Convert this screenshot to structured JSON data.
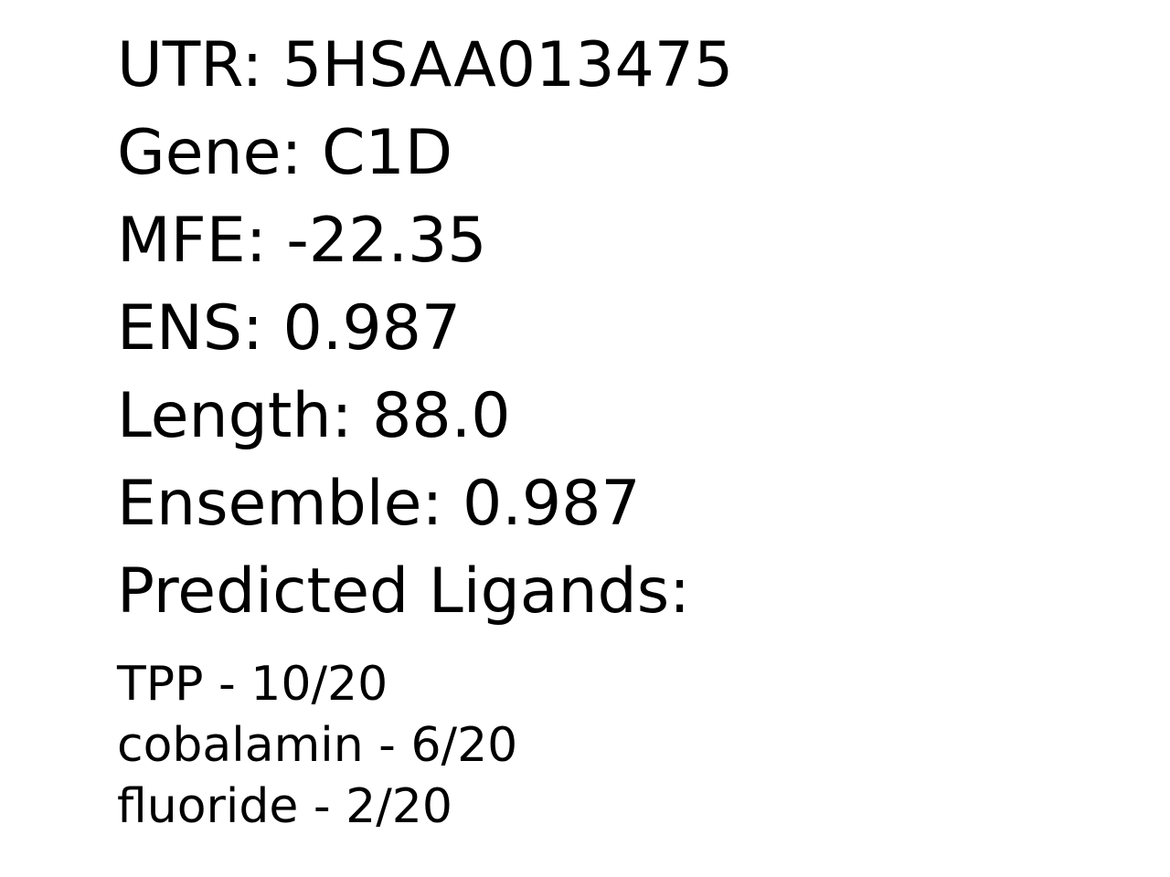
{
  "fields": {
    "utr": "UTR: 5HSAA013475",
    "gene": "Gene: C1D",
    "mfe": "MFE: -22.35",
    "ens": "ENS: 0.987",
    "length": "Length: 88.0",
    "ensemble": "Ensemble: 0.987",
    "predicted_ligands_heading": "Predicted Ligands:"
  },
  "ligands": [
    "TPP - 10/20",
    "cobalamin - 6/20",
    "fluoride - 2/20"
  ]
}
